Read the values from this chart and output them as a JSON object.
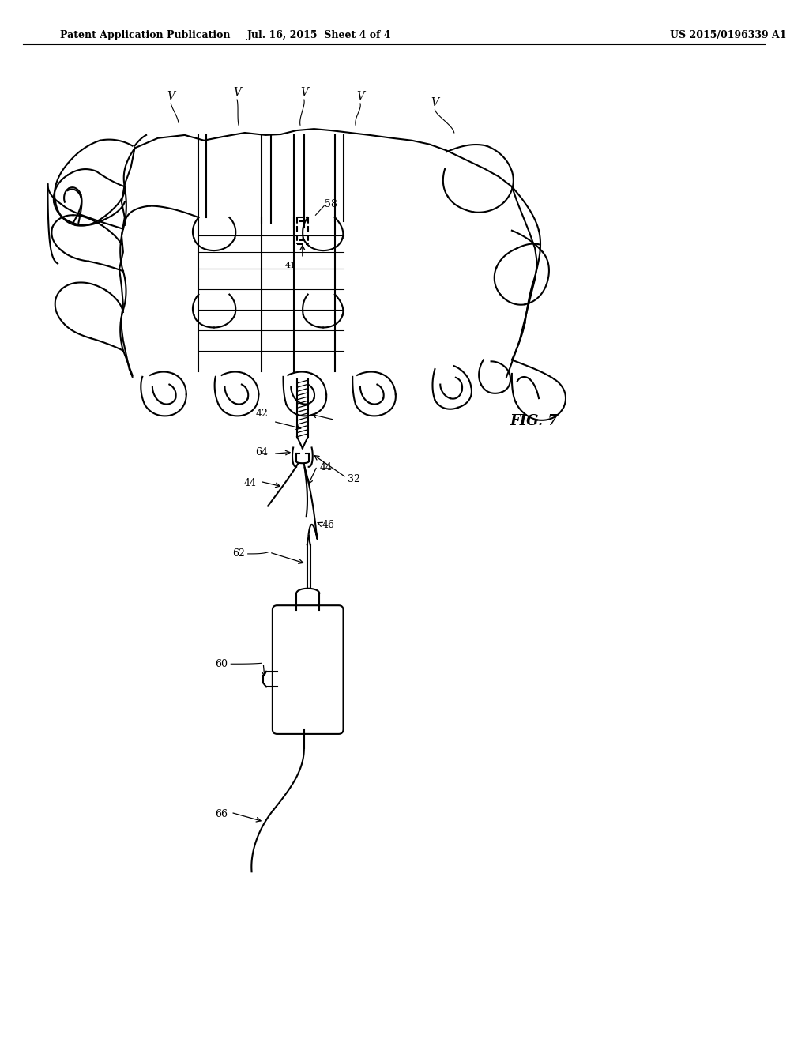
{
  "bg_color": "#ffffff",
  "line_color": "#000000",
  "header_left": "Patent Application Publication",
  "header_mid": "Jul. 16, 2015  Sheet 4 of 4",
  "header_right": "US 2015/0196339 A1",
  "fig_label": "FIG. 7"
}
